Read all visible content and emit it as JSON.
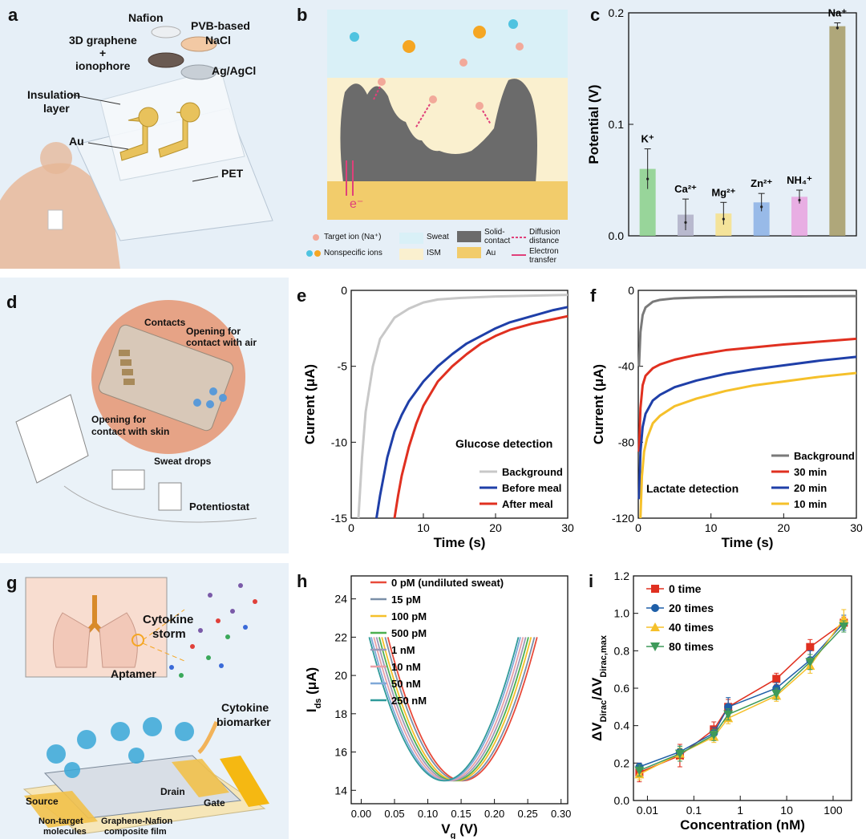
{
  "panels": {
    "a": {
      "letter": "a",
      "labels": {
        "nafion": "Nafion",
        "pvb1": "PVB-based",
        "pvb2": "NaCl",
        "graphene1": "3D graphene",
        "plus": "+",
        "graphene2": "ionophore",
        "agagcl": "Ag/AgCl",
        "insulation1": "Insulation",
        "insulation2": "layer",
        "au": "Au",
        "pet": "PET"
      }
    },
    "b": {
      "letter": "b",
      "electron": "e⁻",
      "legend": {
        "target": "Target ion (Na⁺)",
        "nonspecific": "Nonspecific ions",
        "sweat": "Sweat",
        "ism": "ISM",
        "solid1": "Solid-",
        "solid2": "contact",
        "au": "Au",
        "diff1": "Diffusion",
        "diff2": "distance",
        "elec1": "Electron",
        "elec2": "transfer"
      },
      "colors": {
        "sweat": "#d9f0f7",
        "ism": "#faf0cf",
        "solid": "#6b6b6b",
        "au": "#f2cc6b",
        "target": "#f2a99a",
        "nonspec_blue": "#4fc3e0",
        "nonspec_orange": "#f5a623",
        "arrow": "#e0407a"
      }
    },
    "c": {
      "letter": "c",
      "chart_data": {
        "type": "bar",
        "categories": [
          "K⁺",
          "Ca²⁺",
          "Mg²⁺",
          "Zn²⁺",
          "NH₄⁺",
          "Na⁺"
        ],
        "values": [
          0.06,
          0.019,
          0.02,
          0.03,
          0.035,
          0.188
        ],
        "errors": [
          0.018,
          0.014,
          0.01,
          0.008,
          0.006,
          0.003
        ],
        "colors": [
          "#8fd18f",
          "#b3b3c9",
          "#f5e18f",
          "#8fb4e6",
          "#e8a6e0",
          "#a89e6b"
        ],
        "ylabel": "Potential (V)",
        "ylim": [
          0,
          0.2
        ],
        "yticks": [
          "0.0",
          "0.1",
          "0.2"
        ],
        "ytick_values": [
          0,
          0.1,
          0.2
        ]
      }
    },
    "d": {
      "letter": "d",
      "labels": {
        "contacts": "Contacts",
        "air1": "Opening for",
        "air2": "contact with air",
        "skin1": "Opening for",
        "skin2": "contact with skin",
        "drops": "Sweat drops",
        "potentiostat": "Potentiostat"
      }
    },
    "e": {
      "letter": "e",
      "annotation": "Glucose detection",
      "chart_data": {
        "type": "line",
        "xlabel": "Time (s)",
        "ylabel": "Current (μA)",
        "xlim": [
          0,
          30
        ],
        "ylim": [
          -15,
          0
        ],
        "xticks": [
          "0",
          "10",
          "20",
          "30"
        ],
        "xtick_values": [
          0,
          10,
          20,
          30
        ],
        "yticks": [
          "0",
          "-5",
          "-10",
          "-15"
        ],
        "ytick_values": [
          0,
          -5,
          -10,
          -15
        ],
        "series": [
          {
            "name": "Background",
            "color": "#c8c8c8",
            "x": [
              1.0,
              1.5,
              2.0,
              3.0,
              4.0,
              6.0,
              8.0,
              10.0,
              12.0,
              15.0,
              20.0,
              25.0,
              30.0
            ],
            "y": [
              -15.0,
              -11.0,
              -8.0,
              -5.0,
              -3.2,
              -1.8,
              -1.2,
              -0.8,
              -0.6,
              -0.5,
              -0.4,
              -0.35,
              -0.3
            ]
          },
          {
            "name": "Before meal",
            "color": "#1f3fa8",
            "x": [
              3.5,
              4.0,
              5.0,
              6.0,
              7.0,
              8.0,
              10.0,
              12.0,
              14.0,
              16.0,
              18.0,
              20.0,
              22.0,
              25.0,
              28.0,
              30.0
            ],
            "y": [
              -15.0,
              -13.5,
              -11.0,
              -9.3,
              -8.2,
              -7.3,
              -6.0,
              -5.0,
              -4.2,
              -3.5,
              -3.0,
              -2.5,
              -2.1,
              -1.7,
              -1.3,
              -1.1
            ]
          },
          {
            "name": "After meal",
            "color": "#e03020",
            "x": [
              6.0,
              6.5,
              7.0,
              8.0,
              9.0,
              10.0,
              12.0,
              14.0,
              16.0,
              18.0,
              20.0,
              22.0,
              25.0,
              28.0,
              30.0
            ],
            "y": [
              -15.0,
              -13.5,
              -12.2,
              -10.3,
              -8.8,
              -7.6,
              -6.0,
              -5.0,
              -4.2,
              -3.5,
              -3.0,
              -2.6,
              -2.2,
              -1.9,
              -1.7
            ]
          }
        ]
      }
    },
    "f": {
      "letter": "f",
      "annotation": "Lactate detection",
      "chart_data": {
        "type": "line",
        "xlabel": "Time (s)",
        "ylabel": "Current (μA)",
        "xlim": [
          0,
          30
        ],
        "ylim": [
          -120,
          0
        ],
        "xticks": [
          "0",
          "10",
          "20",
          "30"
        ],
        "xtick_values": [
          0,
          10,
          20,
          30
        ],
        "yticks": [
          "0",
          "-40",
          "-80",
          "-120"
        ],
        "ytick_values": [
          0,
          -40,
          -80,
          -120
        ],
        "series": [
          {
            "name": "Background",
            "color": "#7a7a7a",
            "x": [
              0.1,
              0.3,
              0.6,
              1.0,
              2.0,
              3.0,
              5.0,
              8.0,
              12.0,
              20.0,
              30.0
            ],
            "y": [
              -40.0,
              -22.0,
              -13.0,
              -9.0,
              -6.0,
              -5.0,
              -4.2,
              -3.8,
              -3.5,
              -3.2,
              -3.0
            ]
          },
          {
            "name": "30 min",
            "color": "#e03020",
            "x": [
              0.1,
              0.3,
              0.6,
              1.0,
              2.0,
              3.0,
              5.0,
              8.0,
              12.0,
              16.0,
              20.0,
              25.0,
              30.0
            ],
            "y": [
              -85.0,
              -62.0,
              -50.0,
              -45.0,
              -41.0,
              -39.0,
              -36.5,
              -34.0,
              -31.5,
              -30.0,
              -28.5,
              -27.0,
              -25.5
            ]
          },
          {
            "name": "20 min",
            "color": "#1f3fa8",
            "x": [
              0.1,
              0.3,
              0.6,
              1.0,
              2.0,
              3.0,
              5.0,
              8.0,
              12.0,
              16.0,
              20.0,
              25.0,
              30.0
            ],
            "y": [
              -110.0,
              -85.0,
              -72.0,
              -65.0,
              -58.0,
              -55.0,
              -51.0,
              -47.5,
              -44.0,
              -41.5,
              -39.5,
              -37.0,
              -35.0
            ]
          },
          {
            "name": "10 min",
            "color": "#f5c02a",
            "x": [
              0.3,
              0.5,
              0.8,
              1.2,
              2.0,
              3.0,
              5.0,
              8.0,
              12.0,
              16.0,
              20.0,
              25.0,
              30.0
            ],
            "y": [
              -120.0,
              -98.0,
              -85.0,
              -78.0,
              -70.0,
              -66.0,
              -61.0,
              -57.0,
              -53.0,
              -50.0,
              -48.0,
              -45.5,
              -43.5
            ]
          }
        ]
      }
    },
    "g": {
      "letter": "g",
      "labels": {
        "storm1": "Cytokine",
        "storm2": "storm",
        "aptamer": "Aptamer",
        "bio1": "Cytokine",
        "bio2": "biomarker",
        "source": "Source",
        "drain": "Drain",
        "gate": "Gate",
        "nontarget1": "Non-target",
        "nontarget2": "molecules",
        "film1": "Graphene-Nafion",
        "film2": "composite film"
      }
    },
    "h": {
      "letter": "h",
      "chart_data": {
        "type": "line",
        "xlabel": "V",
        "xlabel_sub": "g",
        "xlabel_unit": " (V)",
        "ylabel": "I",
        "ylabel_sub": "ds",
        "ylabel_unit": " (μA)",
        "xlim": [
          -0.015,
          0.31
        ],
        "ylim": [
          13.3,
          25.2
        ],
        "xticks": [
          "0.00",
          "0.05",
          "0.10",
          "0.15",
          "0.20",
          "0.25",
          "0.30"
        ],
        "xtick_values": [
          0,
          0.05,
          0.1,
          0.15,
          0.2,
          0.25,
          0.3
        ],
        "yticks": [
          "14",
          "16",
          "18",
          "20",
          "22",
          "24"
        ],
        "ytick_values": [
          14,
          16,
          18,
          20,
          22,
          24
        ],
        "curve": {
          "min_current": 14.5,
          "max_current": 22.0,
          "half_width": 0.112
        },
        "series": [
          {
            "name": "0 pM (undiluted sweat)",
            "color": "#e84a3a",
            "dirac": 0.152
          },
          {
            "name": "15 pM",
            "color": "#7a8fa8",
            "dirac": 0.148
          },
          {
            "name": "100 pM",
            "color": "#f5c02a",
            "dirac": 0.143
          },
          {
            "name": "500 pM",
            "color": "#4caf50",
            "dirac": 0.139
          },
          {
            "name": "1 nM",
            "color": "#9a9ab8",
            "dirac": 0.135
          },
          {
            "name": "10 nM",
            "color": "#e8a0a8",
            "dirac": 0.131
          },
          {
            "name": "50 nM",
            "color": "#7fa8d8",
            "dirac": 0.127
          },
          {
            "name": "250 nM",
            "color": "#2f9a9a",
            "dirac": 0.124
          }
        ]
      }
    },
    "i": {
      "letter": "i",
      "chart_data": {
        "type": "scatter",
        "xlabel": "Concentration (nM)",
        "ylabel": "ΔV",
        "ylabel_sub1": "Dirac",
        "ylabel_mid": "/ΔV",
        "ylabel_sub2": "Dirac,max",
        "xscale": "log",
        "xlim": [
          0.005,
          250
        ],
        "ylim": [
          0,
          1.2
        ],
        "xticks": [
          "0.01",
          "0.1",
          "1",
          "10",
          "100"
        ],
        "xtick_values": [
          0.01,
          0.1,
          1,
          10,
          100
        ],
        "yticks": [
          "0.0",
          "0.2",
          "0.4",
          "0.6",
          "0.8",
          "1.0",
          "1.2"
        ],
        "ytick_values": [
          0,
          0.2,
          0.4,
          0.6,
          0.8,
          1.0,
          1.2
        ],
        "x": [
          0.0067,
          0.05,
          0.27,
          0.55,
          6,
          32,
          170
        ],
        "series": [
          {
            "name": "0 time",
            "color": "#e03020",
            "marker": "square",
            "values": [
              0.15,
              0.24,
              0.38,
              0.5,
              0.65,
              0.82,
              0.95
            ],
            "errors": [
              0.05,
              0.06,
              0.04,
              0.04,
              0.03,
              0.04,
              0.03
            ]
          },
          {
            "name": "20 times",
            "color": "#1f5fa8",
            "marker": "circle",
            "values": [
              0.18,
              0.26,
              0.36,
              0.5,
              0.6,
              0.75,
              0.95
            ],
            "errors": [
              0.02,
              0.03,
              0.03,
              0.05,
              0.03,
              0.05,
              0.04
            ]
          },
          {
            "name": "40 times",
            "color": "#f5c02a",
            "marker": "triangle-up",
            "values": [
              0.14,
              0.25,
              0.34,
              0.44,
              0.56,
              0.72,
              0.97
            ],
            "errors": [
              0.03,
              0.03,
              0.03,
              0.03,
              0.03,
              0.04,
              0.05
            ]
          },
          {
            "name": "80 times",
            "color": "#3e9a5a",
            "marker": "triangle-down",
            "values": [
              0.16,
              0.25,
              0.35,
              0.46,
              0.57,
              0.74,
              0.93
            ],
            "errors": [
              0.03,
              0.04,
              0.03,
              0.03,
              0.03,
              0.04,
              0.03
            ]
          }
        ]
      }
    }
  }
}
